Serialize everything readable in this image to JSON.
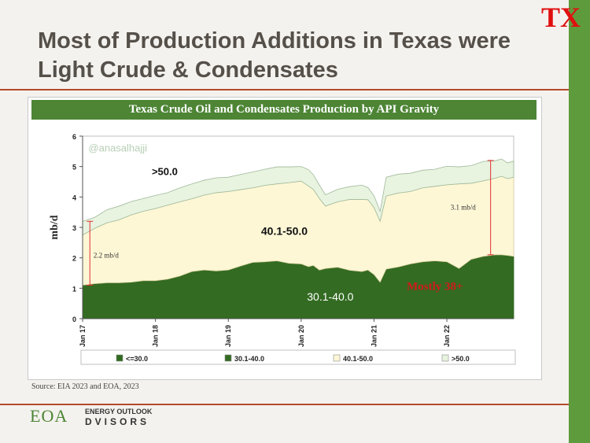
{
  "page": {
    "title": "Most of Production Additions in Texas were Light Crude & Condensates",
    "tag": "TX",
    "source": "Source: EIA 2023 and EOA, 2023",
    "logo": {
      "main": "EOA",
      "top": "ENERGY OUTLOOK",
      "bottom": "DVISORS"
    }
  },
  "colors": {
    "accent": "#5e9b3d",
    "banner": "#4d8535",
    "rule": "#b44a2a",
    "tag": "#e01010"
  },
  "chart_data": {
    "type": "area",
    "title": "Texas Crude Oil and Condensates Production by API Gravity",
    "ylabel": "mb/d",
    "xlabel": "",
    "ylim": [
      0,
      6
    ],
    "yticks": [
      0,
      1,
      2,
      3,
      4,
      5,
      6
    ],
    "xticks": [
      {
        "label": "Jan 17",
        "x": 2017.0
      },
      {
        "label": "Jan 18",
        "x": 2018.0
      },
      {
        "label": "Jan 19",
        "x": 2019.0
      },
      {
        "label": "Jan 20",
        "x": 2020.0
      },
      {
        "label": "Jan 21",
        "x": 2021.0
      },
      {
        "label": "Jan 22",
        "x": 2022.0
      }
    ],
    "xlim": [
      2017.0,
      2022.917
    ],
    "x": [
      2017.0,
      2017.167,
      2017.333,
      2017.5,
      2017.667,
      2017.833,
      2018.0,
      2018.167,
      2018.333,
      2018.5,
      2018.667,
      2018.833,
      2019.0,
      2019.167,
      2019.333,
      2019.5,
      2019.667,
      2019.833,
      2020.0,
      2020.1,
      2020.167,
      2020.25,
      2020.333,
      2020.5,
      2020.667,
      2020.833,
      2020.917,
      2021.0,
      2021.083,
      2021.167,
      2021.333,
      2021.5,
      2021.667,
      2021.833,
      2022.0,
      2022.167,
      2022.333,
      2022.5,
      2022.667,
      2022.75,
      2022.833,
      2022.917
    ],
    "series": [
      {
        "name": "<=30.0",
        "color": "#2e6b1e",
        "values": [
          0.03,
          0.03,
          0.03,
          0.03,
          0.03,
          0.03,
          0.03,
          0.03,
          0.03,
          0.03,
          0.03,
          0.03,
          0.03,
          0.03,
          0.03,
          0.03,
          0.03,
          0.03,
          0.03,
          0.03,
          0.03,
          0.03,
          0.03,
          0.03,
          0.03,
          0.03,
          0.03,
          0.03,
          0.03,
          0.03,
          0.03,
          0.03,
          0.03,
          0.03,
          0.03,
          0.03,
          0.03,
          0.03,
          0.03,
          0.03,
          0.03,
          0.03
        ]
      },
      {
        "name": "30.1-40.0",
        "color": "#336b22",
        "values": [
          1.07,
          1.12,
          1.15,
          1.15,
          1.17,
          1.22,
          1.22,
          1.27,
          1.37,
          1.52,
          1.57,
          1.54,
          1.57,
          1.7,
          1.82,
          1.84,
          1.87,
          1.79,
          1.77,
          1.68,
          1.72,
          1.57,
          1.62,
          1.66,
          1.56,
          1.52,
          1.57,
          1.42,
          1.17,
          1.6,
          1.67,
          1.77,
          1.84,
          1.87,
          1.84,
          1.62,
          1.92,
          2.02,
          2.07,
          2.07,
          2.05,
          2.02
        ]
      },
      {
        "name": "40.1-50.0",
        "color": "#fdf7d6",
        "values": [
          1.65,
          1.82,
          1.97,
          2.07,
          2.21,
          2.28,
          2.37,
          2.43,
          2.44,
          2.39,
          2.46,
          2.57,
          2.58,
          2.51,
          2.45,
          2.51,
          2.53,
          2.65,
          2.72,
          2.65,
          2.5,
          2.35,
          2.05,
          2.15,
          2.33,
          2.37,
          2.31,
          2.2,
          2.0,
          2.4,
          2.43,
          2.38,
          2.43,
          2.45,
          2.53,
          2.78,
          2.5,
          2.48,
          2.52,
          2.58,
          2.52,
          2.6
        ]
      },
      {
        "name": ">50.0",
        "color": "#e8f3e0",
        "values": [
          0.45,
          0.36,
          0.43,
          0.45,
          0.44,
          0.42,
          0.43,
          0.41,
          0.46,
          0.49,
          0.49,
          0.49,
          0.47,
          0.5,
          0.52,
          0.53,
          0.56,
          0.52,
          0.48,
          0.54,
          0.48,
          0.44,
          0.37,
          0.41,
          0.42,
          0.47,
          0.4,
          0.39,
          0.33,
          0.62,
          0.62,
          0.6,
          0.58,
          0.56,
          0.61,
          0.56,
          0.58,
          0.64,
          0.57,
          0.57,
          0.52,
          0.53
        ]
      }
    ],
    "annotations": [
      {
        "text": ">50.0",
        "x": 2017.95,
        "y": 4.72,
        "color": "#111111",
        "size": 13,
        "weight": "bold",
        "family": "sans"
      },
      {
        "text": "40.1-50.0",
        "x": 2019.45,
        "y": 2.75,
        "color": "#111111",
        "size": 14,
        "weight": "bold",
        "family": "sans"
      },
      {
        "text": "30.1-40.0",
        "x": 2020.08,
        "y": 0.6,
        "color": "#ffffff",
        "size": 14,
        "weight": "normal",
        "family": "sans"
      },
      {
        "text": "Mostly 38+",
        "x": 2021.45,
        "y": 0.95,
        "color": "#d01a1a",
        "size": 15,
        "weight": "bold",
        "family": "serif"
      },
      {
        "text": "2.2 mb/d",
        "x": 2017.15,
        "y": 2.0,
        "color": "#333333",
        "size": 9,
        "weight": "normal",
        "family": "serif"
      },
      {
        "text": "3.1 mb/d",
        "x": 2022.05,
        "y": 3.58,
        "color": "#333333",
        "size": 9,
        "weight": "normal",
        "family": "serif"
      },
      {
        "text": "@anasalhajji",
        "x": 2017.08,
        "y": 5.5,
        "color": "#b7cfb5",
        "size": 13,
        "weight": "normal",
        "family": "sans"
      }
    ],
    "brackets": [
      {
        "x": 2017.1,
        "y0": 1.1,
        "y1": 3.2
      },
      {
        "x": 2022.6,
        "y0": 2.1,
        "y1": 5.2
      }
    ],
    "legend": {
      "position": "bottom",
      "items": [
        "<=30.0",
        "30.1-40.0",
        "40.1-50.0",
        ">50.0"
      ]
    }
  }
}
